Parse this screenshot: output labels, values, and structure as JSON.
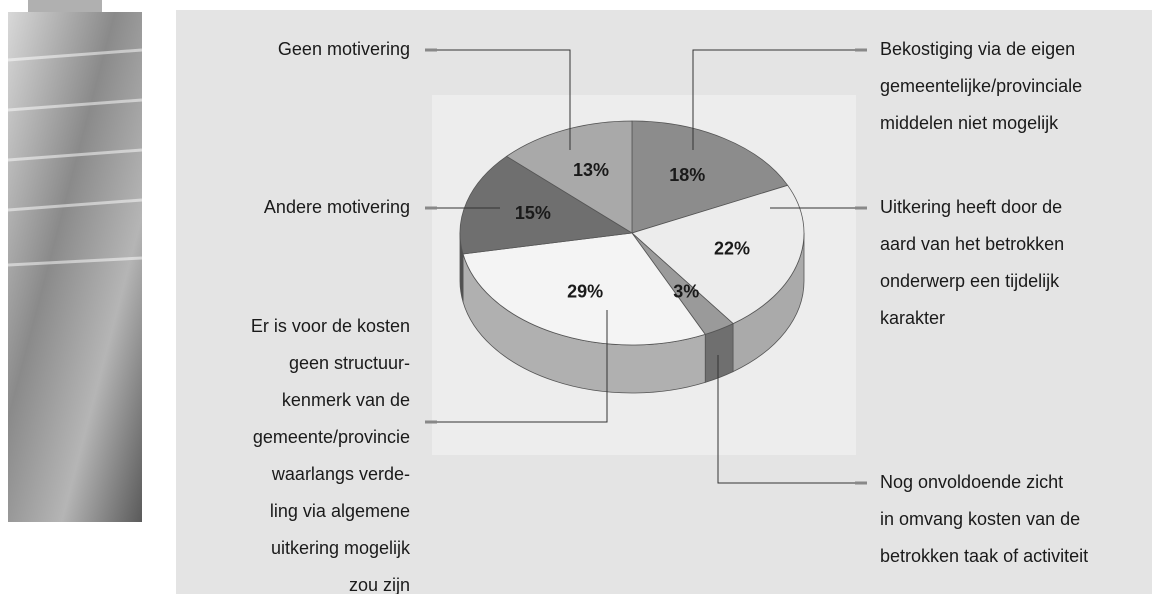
{
  "chart_data": {
    "type": "pie3d",
    "categories": [
      [
        "Bekostiging via de eigen",
        "gemeentelijke/provinciale",
        "middelen niet mogelijk"
      ],
      [
        "Uitkering heeft door de",
        "aard van het betrokken",
        "onderwerp een tijdelijk",
        "karakter"
      ],
      [
        "Nog onvoldoende zicht",
        "in omvang kosten van de",
        "betrokken taak of activiteit"
      ],
      [
        "Er is voor de kosten",
        "geen structuur-",
        "kenmerk van de",
        "gemeente/provincie",
        "waarlangs verde-",
        "ling via algemene",
        "uitkering mogelijk",
        "zou zijn"
      ],
      [
        "Andere motivering"
      ],
      [
        "Geen motivering"
      ]
    ],
    "values": [
      18,
      22,
      3,
      29,
      15,
      13
    ],
    "value_labels": [
      "18%",
      "22%",
      "3%",
      "29%",
      "15%",
      "13%"
    ],
    "colors": [
      "#8c8c8c",
      "#ececec",
      "#9a9a9a",
      "#f4f4f4",
      "#6f6f6f",
      "#a9a9a9"
    ]
  }
}
